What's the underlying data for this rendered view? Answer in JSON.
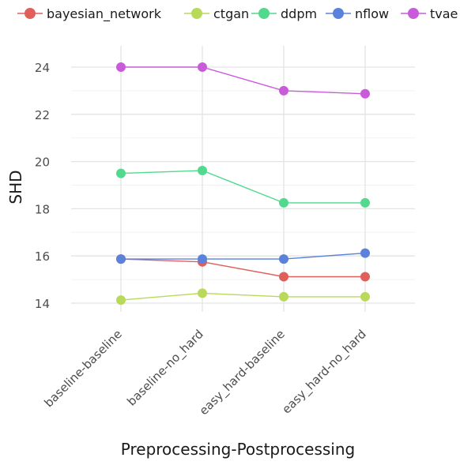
{
  "chart_data": {
    "type": "line",
    "title": "",
    "xlabel": "Preprocessing-Postprocessing",
    "ylabel": "SHD",
    "categories": [
      "baseline-baseline",
      "baseline-no_hard",
      "easy_hard-baseline",
      "easy_hard-no_hard"
    ],
    "ylim": [
      13.6,
      24.5
    ],
    "yticks": [
      14,
      16,
      18,
      20,
      22,
      24
    ],
    "grid": true,
    "legend_position": "top",
    "series": [
      {
        "name": "bayesian_network",
        "color": "#E05F5A",
        "values": [
          15.87,
          15.75,
          15.12,
          15.12
        ]
      },
      {
        "name": "ctgan",
        "color": "#B8D95A",
        "values": [
          14.13,
          14.42,
          14.27,
          14.27
        ]
      },
      {
        "name": "ddpm",
        "color": "#52D98E",
        "values": [
          19.5,
          19.62,
          18.25,
          18.25
        ]
      },
      {
        "name": "nflow",
        "color": "#5B82DB",
        "values": [
          15.87,
          15.87,
          15.87,
          16.12
        ]
      },
      {
        "name": "tvae",
        "color": "#C95BDB",
        "values": [
          24.0,
          24.0,
          23.0,
          22.87
        ]
      }
    ]
  }
}
